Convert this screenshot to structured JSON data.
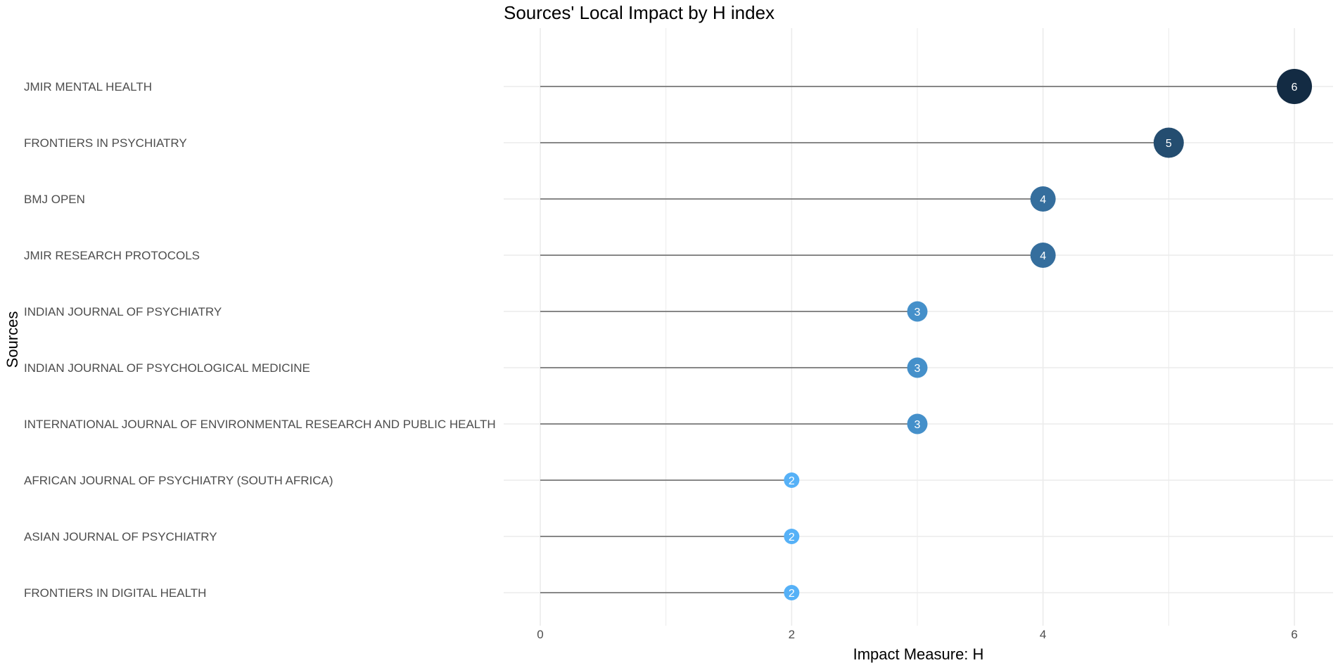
{
  "chart_data": {
    "type": "lollipop",
    "title": "Sources' Local Impact by H index",
    "xlabel": "Impact Measure: H",
    "ylabel": "Sources",
    "xlim": [
      0,
      6
    ],
    "x_ticks": [
      0,
      2,
      4,
      6
    ],
    "grid": true,
    "legend": "none",
    "categories": [
      "JMIR MENTAL HEALTH",
      "FRONTIERS IN PSYCHIATRY",
      "BMJ OPEN",
      "JMIR RESEARCH PROTOCOLS",
      "INDIAN JOURNAL OF PSYCHIATRY",
      "INDIAN JOURNAL OF PSYCHOLOGICAL MEDICINE",
      "INTERNATIONAL JOURNAL OF ENVIRONMENTAL RESEARCH AND PUBLIC HEALTH",
      "AFRICAN JOURNAL OF PSYCHIATRY (SOUTH AFRICA)",
      "ASIAN JOURNAL OF PSYCHIATRY",
      "FRONTIERS IN DIGITAL HEALTH"
    ],
    "values": [
      6,
      5,
      4,
      4,
      3,
      3,
      3,
      2,
      2,
      2
    ],
    "point_labels": [
      "6",
      "5",
      "4",
      "4",
      "3",
      "3",
      "3",
      "2",
      "2",
      "2"
    ],
    "tick_labels": [
      "0",
      "2",
      "4",
      "6"
    ],
    "colors": {
      "low": "#56b1f7",
      "high": "#132b43",
      "stem": "#777777",
      "grid": "#ebebeb"
    }
  }
}
